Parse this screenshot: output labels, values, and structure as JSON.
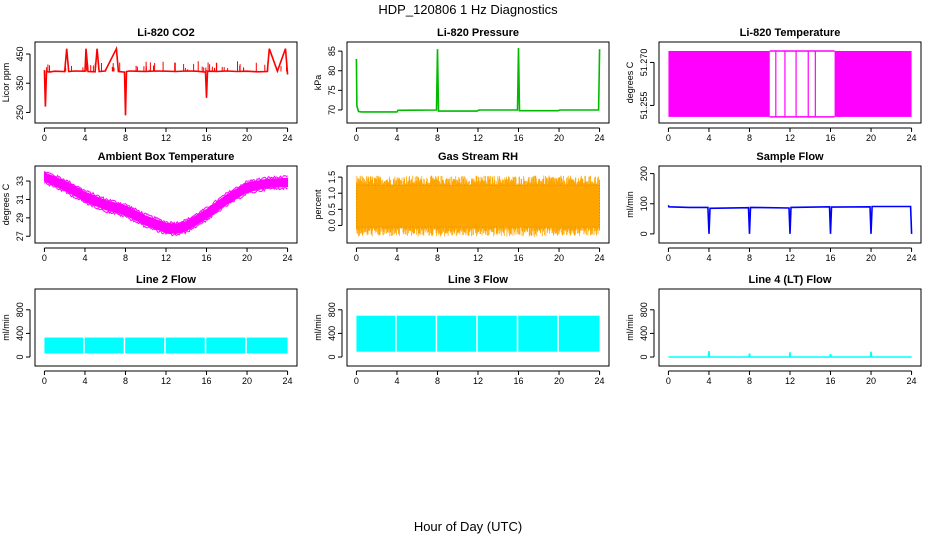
{
  "figure": {
    "title": "HDP_120806  1 Hz Diagnostics",
    "xlabel": "Hour of Day (UTC)"
  },
  "chart_data": [
    {
      "id": "co2",
      "type": "line",
      "title": "Li-820 CO2",
      "ylabel": "Licor ppm",
      "color": "#ff0000",
      "xlim": [
        0,
        24
      ],
      "ylim": [
        225,
        480
      ],
      "xticks": [
        0,
        4,
        8,
        12,
        16,
        20,
        24
      ],
      "xtick_labels": [
        "0",
        "4",
        "8",
        "12",
        "16",
        "20",
        "24"
      ],
      "yticks": [
        250,
        350,
        450
      ],
      "ytick_labels": [
        "250",
        "350",
        "450"
      ],
      "x": [
        0,
        0.1,
        0.2,
        0.5,
        1,
        2,
        2.2,
        2.4,
        3,
        4,
        4.1,
        4.3,
        5,
        5.2,
        5.4,
        6,
        7.1,
        7.3,
        7.9,
        8.0,
        8.1,
        8.4,
        9,
        10,
        11,
        12,
        13,
        14,
        15,
        15.9,
        16.0,
        16.1,
        16.4,
        17,
        18,
        19,
        20,
        21,
        22,
        22.2,
        23,
        23.8,
        24
      ],
      "y": [
        395,
        270,
        390,
        388,
        391,
        390,
        468,
        390,
        392,
        391,
        468,
        390,
        389,
        468,
        390,
        392,
        468,
        390,
        388,
        240,
        390,
        392,
        391,
        390,
        392,
        391,
        390,
        392,
        391,
        388,
        300,
        390,
        391,
        390,
        392,
        390,
        391,
        389,
        390,
        468,
        391,
        468,
        380
      ]
    },
    {
      "id": "pressure",
      "type": "line",
      "title": "Li-820 Pressure",
      "ylabel": "kPa",
      "color": "#00bb00",
      "xlim": [
        0,
        24
      ],
      "ylim": [
        67.5,
        86.5
      ],
      "xticks": [
        0,
        4,
        8,
        12,
        16,
        20,
        24
      ],
      "xtick_labels": [
        "0",
        "4",
        "8",
        "12",
        "16",
        "20",
        "24"
      ],
      "yticks": [
        70,
        75,
        80,
        85
      ],
      "ytick_labels": [
        "70",
        "75",
        "80",
        "85"
      ],
      "x": [
        0,
        0.05,
        0.2,
        0.5,
        4,
        4.1,
        7.9,
        8.0,
        8.1,
        11.9,
        12.1,
        15.9,
        16.0,
        16.1,
        19.9,
        20.1,
        23.9,
        24
      ],
      "y": [
        83,
        71,
        69.6,
        69.5,
        69.5,
        69.9,
        70.0,
        85.5,
        69.7,
        69.7,
        70.0,
        70.0,
        85.8,
        69.8,
        69.8,
        70.0,
        70.0,
        85.5
      ]
    },
    {
      "id": "temp820",
      "type": "area",
      "title": "Li-820 Temperature",
      "ylabel": "degrees C",
      "color": "#ff00ff",
      "xlim": [
        0,
        24
      ],
      "ylim": [
        51.25,
        51.276
      ],
      "xticks": [
        0,
        4,
        8,
        12,
        16,
        20,
        24
      ],
      "xtick_labels": [
        "0",
        "4",
        "8",
        "12",
        "16",
        "20",
        "24"
      ],
      "yticks": [
        51.255,
        51.27
      ],
      "ytick_labels": [
        "51.255",
        "51.270"
      ],
      "band_low": 51.251,
      "band_high": 51.274,
      "band_gaps": [
        [
          10.0,
          16.4
        ]
      ],
      "spikes_x": [
        10.6,
        11.5,
        12.6,
        13.8,
        14.5,
        16.9
      ]
    },
    {
      "id": "ambient",
      "type": "area",
      "title": "Ambient Box Temperature",
      "ylabel": "degrees C",
      "color": "#ff00ff",
      "xlim": [
        0,
        24
      ],
      "ylim": [
        26.6,
        34.3
      ],
      "xticks": [
        0,
        4,
        8,
        12,
        16,
        20,
        24
      ],
      "xtick_labels": [
        "0",
        "4",
        "8",
        "12",
        "16",
        "20",
        "24"
      ],
      "yticks": [
        27,
        29,
        31,
        33
      ],
      "ytick_labels": [
        "27",
        "29",
        "31",
        "33"
      ],
      "x": [
        0,
        2,
        4,
        6,
        8,
        10,
        12,
        13,
        14,
        16,
        18,
        20,
        22,
        24
      ],
      "low": [
        33.0,
        32.0,
        30.8,
        29.9,
        29.3,
        28.2,
        27.4,
        27.3,
        27.6,
        28.9,
        30.5,
        31.8,
        32.3,
        32.4
      ],
      "high": [
        33.9,
        33.0,
        31.8,
        30.9,
        30.3,
        29.2,
        28.4,
        28.3,
        28.6,
        29.9,
        31.5,
        32.8,
        33.2,
        33.3
      ]
    },
    {
      "id": "rh",
      "type": "area",
      "title": "Gas Stream RH",
      "ylabel": "percent",
      "color": "#ffa500",
      "edge_color": "#aa8800",
      "xlim": [
        0,
        24
      ],
      "ylim": [
        -0.45,
        1.75
      ],
      "xticks": [
        0,
        4,
        8,
        12,
        16,
        20,
        24
      ],
      "xtick_labels": [
        "0",
        "4",
        "8",
        "12",
        "16",
        "20",
        "24"
      ],
      "yticks": [
        0.0,
        0.5,
        1.0,
        1.5
      ],
      "ytick_labels": [
        "0.0",
        "0.5",
        "1.0",
        "1.5"
      ],
      "band_low": -0.05,
      "band_high": 1.25,
      "extreme_low": -0.35,
      "extreme_high": 1.55
    },
    {
      "id": "sample",
      "type": "line",
      "title": "Sample Flow",
      "ylabel": "ml/min",
      "color": "#0000ff",
      "xlim": [
        0,
        24
      ],
      "ylim": [
        -20,
        215
      ],
      "xticks": [
        0,
        4,
        8,
        12,
        16,
        20,
        24
      ],
      "xtick_labels": [
        "0",
        "4",
        "8",
        "12",
        "16",
        "20",
        "24"
      ],
      "yticks": [
        0,
        100,
        200
      ],
      "ytick_labels": [
        "0",
        "100",
        "200"
      ],
      "x": [
        0,
        0.05,
        2,
        3.9,
        4.0,
        4.1,
        7.9,
        8.0,
        8.1,
        11.9,
        12.0,
        12.1,
        15.9,
        16.0,
        16.1,
        19.9,
        20.0,
        20.1,
        23.9,
        24
      ],
      "y": [
        95,
        90,
        88,
        88,
        0,
        85,
        87,
        0,
        88,
        86,
        0,
        88,
        90,
        0,
        89,
        90,
        0,
        91,
        91,
        0
      ]
    },
    {
      "id": "line2",
      "type": "area",
      "title": "Line 2 Flow",
      "ylabel": "ml/min",
      "color": "#00ffff",
      "xlim": [
        0,
        24
      ],
      "ylim": [
        -100,
        1100
      ],
      "xticks": [
        0,
        4,
        8,
        12,
        16,
        20,
        24
      ],
      "xtick_labels": [
        "0",
        "4",
        "8",
        "12",
        "16",
        "20",
        "24"
      ],
      "yticks": [
        0,
        400,
        800
      ],
      "ytick_labels": [
        "0",
        "400",
        "800"
      ],
      "band_low": 60,
      "band_high": 330,
      "gaps_x": [
        3.9,
        7.9,
        11.9,
        15.9,
        19.9
      ]
    },
    {
      "id": "line3",
      "type": "area",
      "title": "Line 3 Flow",
      "ylabel": "ml/min",
      "color": "#00ffff",
      "xlim": [
        0,
        24
      ],
      "ylim": [
        -100,
        1100
      ],
      "xticks": [
        0,
        4,
        8,
        12,
        16,
        20,
        24
      ],
      "xtick_labels": [
        "0",
        "4",
        "8",
        "12",
        "16",
        "20",
        "24"
      ],
      "yticks": [
        0,
        400,
        800
      ],
      "ytick_labels": [
        "0",
        "400",
        "800"
      ],
      "band_low": 90,
      "band_high": 700,
      "gaps_x": [
        3.9,
        7.9,
        11.9,
        15.9,
        19.9
      ]
    },
    {
      "id": "line4",
      "type": "line",
      "title": "Line 4 (LT) Flow",
      "ylabel": "ml/min",
      "color": "#00ffff",
      "xlim": [
        0,
        24
      ],
      "ylim": [
        -100,
        1100
      ],
      "xticks": [
        0,
        4,
        8,
        12,
        16,
        20,
        24
      ],
      "xtick_labels": [
        "0",
        "4",
        "8",
        "12",
        "16",
        "20",
        "24"
      ],
      "yticks": [
        0,
        400,
        800
      ],
      "ytick_labels": [
        "0",
        "400",
        "800"
      ],
      "x": [
        0,
        3.95,
        4.0,
        4.05,
        7.95,
        8.0,
        8.05,
        11.95,
        12.0,
        12.05,
        15.95,
        16.0,
        16.05,
        19.95,
        20.0,
        20.05,
        24
      ],
      "y": [
        0,
        0,
        100,
        0,
        0,
        60,
        0,
        0,
        80,
        0,
        0,
        50,
        0,
        0,
        90,
        0,
        0
      ]
    }
  ]
}
